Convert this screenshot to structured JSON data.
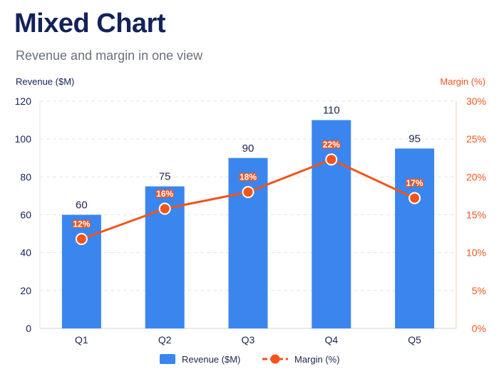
{
  "chart_data": {
    "type": "bar",
    "title": "Mixed Chart",
    "subtitle": "Revenue and margin in one view",
    "categories": [
      "Q1",
      "Q2",
      "Q3",
      "Q4",
      "Q5"
    ],
    "y_left": {
      "label": "Revenue ($M)",
      "range": [
        0,
        120
      ],
      "ticks": [
        "0",
        "20",
        "40",
        "60",
        "80",
        "100",
        "120"
      ]
    },
    "y_right": {
      "label": "Margin (%)",
      "range": [
        0,
        30
      ],
      "ticks": [
        "0%",
        "5%",
        "10%",
        "15%",
        "20%",
        "25%",
        "30%"
      ]
    },
    "series": [
      {
        "name": "Revenue ($M)",
        "type": "bar",
        "axis": "left",
        "values": [
          60,
          75,
          90,
          110,
          95
        ],
        "labels": [
          "60",
          "75",
          "90",
          "110",
          "95"
        ],
        "color": "#3a86ee"
      },
      {
        "name": "Margin (%)",
        "type": "line",
        "axis": "right",
        "values": [
          11.8,
          15.8,
          18,
          22.3,
          17.2
        ],
        "labels": [
          "12%",
          "16%",
          "18%",
          "22%",
          "17%"
        ],
        "color": "#f2541b"
      }
    ],
    "grid": true,
    "legend": "bottom-center",
    "colors": {
      "left_axis": "#14225a",
      "right_axis": "#f2541b",
      "grid": "#e3e5ea"
    }
  }
}
